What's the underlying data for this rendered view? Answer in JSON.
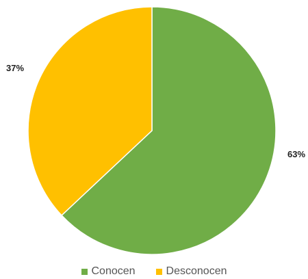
{
  "chart_data": {
    "type": "pie",
    "title": "",
    "slices": [
      {
        "label": "Conocen",
        "value": 63,
        "display": "63%",
        "color": "#70ad47"
      },
      {
        "label": "Desconocen",
        "value": 37,
        "display": "37%",
        "color": "#ffc000"
      }
    ],
    "start_angle_deg": 0,
    "direction": "clockwise",
    "legend_position": "bottom"
  }
}
